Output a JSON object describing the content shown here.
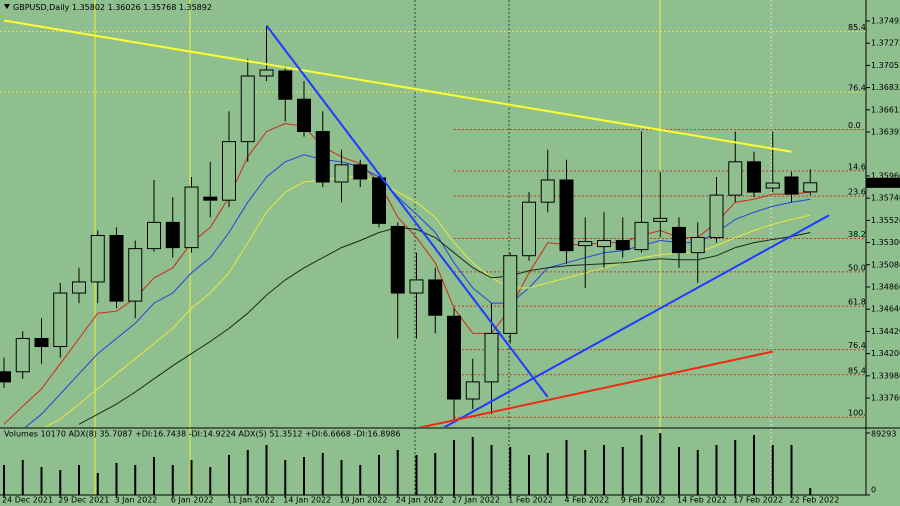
{
  "chart_data": {
    "type": "candlestick",
    "symbol": "GBPUSD,Daily",
    "volume_title": "Volumes 10170  ADX(8) 35.7087 +DI:16.7438 -DI:14.9224  ADX(5) 51.3512 +DI:6.6668 -DI:16.8986",
    "categories": [
      "24 Dec 2021",
      null,
      null,
      "29 Dec 2021",
      null,
      null,
      "3 Jan 2022",
      null,
      null,
      "6 Jan 2022",
      null,
      null,
      "11 Jan 2022",
      null,
      null,
      "14 Jan 2022",
      null,
      null,
      "19 Jan 2022",
      null,
      null,
      "24 Jan 2022",
      null,
      null,
      "27 Jan 2022",
      null,
      null,
      "1 Feb 2022",
      null,
      null,
      "4 Feb 2022",
      null,
      null,
      "9 Feb 2022",
      null,
      null,
      "14 Feb 2022",
      null,
      null,
      "17 Feb 2022",
      null,
      null,
      "22 Feb 2022",
      null
    ],
    "open": [
      1.3402,
      1.3402,
      1.3435,
      1.3427,
      1.348,
      1.3491,
      1.3537,
      1.3472,
      1.3524,
      1.355,
      1.3525,
      1.3575,
      1.3572,
      1.363,
      1.3695,
      1.37,
      1.3672,
      1.364,
      1.359,
      1.3607,
      1.3594,
      1.3546,
      1.348,
      1.3493,
      1.3457,
      1.3375,
      1.3392,
      1.344,
      1.3517,
      1.357,
      1.3592,
      1.3527,
      1.3526,
      1.3532,
      1.3523,
      1.3551,
      1.3545,
      1.352,
      1.3535,
      1.3577,
      1.361,
      1.3584,
      1.3595,
      1.35802
    ],
    "high": [
      1.3416,
      1.3442,
      1.3455,
      1.349,
      1.3505,
      1.3542,
      1.3545,
      1.3532,
      1.3592,
      1.3575,
      1.3595,
      1.361,
      1.366,
      1.3712,
      1.3745,
      1.3705,
      1.369,
      1.366,
      1.3622,
      1.3612,
      1.3596,
      1.355,
      1.352,
      1.3505,
      1.3465,
      1.3415,
      1.347,
      1.352,
      1.358,
      1.3622,
      1.3612,
      1.3555,
      1.356,
      1.3555,
      1.364,
      1.36,
      1.3555,
      1.355,
      1.3595,
      1.364,
      1.362,
      1.364,
      1.36,
      1.36026
    ],
    "low": [
      1.3386,
      1.3395,
      1.341,
      1.3416,
      1.347,
      1.347,
      1.3465,
      1.3455,
      1.3521,
      1.3515,
      1.352,
      1.3555,
      1.3565,
      1.361,
      1.369,
      1.365,
      1.3635,
      1.3585,
      1.357,
      1.3585,
      1.3545,
      1.3435,
      1.3435,
      1.344,
      1.3355,
      1.3365,
      1.336,
      1.343,
      1.3512,
      1.356,
      1.3509,
      1.3485,
      1.3505,
      1.3515,
      1.352,
      1.3535,
      1.3505,
      1.349,
      1.353,
      1.357,
      1.3575,
      1.358,
      1.357,
      1.35768
    ],
    "close": [
      1.3392,
      1.3435,
      1.3427,
      1.348,
      1.3491,
      1.3537,
      1.3472,
      1.3524,
      1.355,
      1.3525,
      1.3585,
      1.3572,
      1.363,
      1.3695,
      1.3701,
      1.3672,
      1.364,
      1.359,
      1.3607,
      1.3593,
      1.3549,
      1.348,
      1.3493,
      1.3458,
      1.3375,
      1.3392,
      1.344,
      1.3517,
      1.357,
      1.3592,
      1.3522,
      1.3531,
      1.3532,
      1.3523,
      1.355,
      1.3554,
      1.352,
      1.3535,
      1.3577,
      1.361,
      1.358,
      1.3589,
      1.3578,
      1.35892
    ],
    "volume": [
      43200,
      50400,
      40320,
      36000,
      43200,
      31680,
      46080,
      43200,
      54720,
      43200,
      50400,
      40320,
      57600,
      64800,
      72000,
      50400,
      54720,
      60480,
      50400,
      43200,
      57600,
      64800,
      57600,
      60480,
      79200,
      83520,
      72000,
      69120,
      57600,
      60480,
      79200,
      64800,
      72000,
      69120,
      86400,
      89280,
      69120,
      64800,
      72000,
      79200,
      86400,
      72000,
      72000,
      10170
    ],
    "series": [
      {
        "color": "#d02818",
        "values": [
          1.335,
          1.3368,
          1.3385,
          1.341,
          1.3435,
          1.346,
          1.3462,
          1.3475,
          1.3495,
          1.3505,
          1.353,
          1.3545,
          1.3575,
          1.3615,
          1.364,
          1.3648,
          1.3645,
          1.3625,
          1.3615,
          1.3608,
          1.359,
          1.3555,
          1.3535,
          1.351,
          1.3465,
          1.344,
          1.344,
          1.3465,
          1.35,
          1.353,
          1.3528,
          1.3528,
          1.353,
          1.353,
          1.3537,
          1.3542,
          1.3535,
          1.3535,
          1.355,
          1.357,
          1.3573,
          1.3578,
          1.3578,
          1.358
        ]
      },
      {
        "color": "#2244dd",
        "values": [
          1.3335,
          1.3345,
          1.336,
          1.338,
          1.34,
          1.342,
          1.3435,
          1.345,
          1.347,
          1.348,
          1.35,
          1.3515,
          1.354,
          1.357,
          1.3595,
          1.361,
          1.3617,
          1.3612,
          1.361,
          1.3605,
          1.3595,
          1.3575,
          1.3558,
          1.354,
          1.351,
          1.3485,
          1.347,
          1.347,
          1.3485,
          1.3505,
          1.351,
          1.3515,
          1.352,
          1.3522,
          1.3527,
          1.3532,
          1.353,
          1.353,
          1.354,
          1.3553,
          1.356,
          1.3566,
          1.357,
          1.3573
        ]
      },
      {
        "color": "#e8e840",
        "values": [
          null,
          null,
          1.3345,
          1.3355,
          1.337,
          1.3385,
          1.34,
          1.3415,
          1.343,
          1.3445,
          1.3465,
          1.348,
          1.35,
          1.353,
          1.356,
          1.358,
          1.359,
          1.3592,
          1.3595,
          1.3595,
          1.359,
          1.358,
          1.357,
          1.3555,
          1.353,
          1.351,
          1.3495,
          1.3485,
          1.3485,
          1.349,
          1.3495,
          1.35,
          1.3505,
          1.351,
          1.3515,
          1.3518,
          1.352,
          1.352,
          1.3527,
          1.3535,
          1.3542,
          1.3548,
          1.3553,
          1.3557
        ]
      },
      {
        "color": "#1a2a1a",
        "values": [
          null,
          null,
          null,
          null,
          1.335,
          1.336,
          1.337,
          1.3382,
          1.3395,
          1.3408,
          1.342,
          1.3432,
          1.3445,
          1.346,
          1.3478,
          1.3493,
          1.3505,
          1.3515,
          1.3525,
          1.3532,
          1.354,
          1.3545,
          1.3543,
          1.3535,
          1.352,
          1.3505,
          1.3495,
          1.3497,
          1.3502,
          1.3505,
          1.3507,
          1.3508,
          1.3509,
          1.351,
          1.3512,
          1.3514,
          1.3513,
          1.3513,
          1.3517,
          1.3525,
          1.353,
          1.3533,
          1.3536,
          1.354
        ]
      }
    ],
    "trendlines": [
      {
        "color": "#ffff30",
        "x": [
          0,
          42
        ],
        "y": [
          1.375,
          1.362
        ]
      },
      {
        "color": "#1e3cff",
        "x": [
          14,
          29
        ],
        "y": [
          1.3745,
          1.3377
        ]
      },
      {
        "color": "#1e3cff",
        "x": [
          23,
          44
        ],
        "y": [
          1.3342,
          1.3557
        ]
      },
      {
        "color": "#ee2a10",
        "x": [
          21,
          41
        ],
        "y": [
          1.3342,
          1.3422
        ]
      }
    ],
    "levels": [
      {
        "label": "85.4",
        "value": 1.3739,
        "color": "#e8e840"
      },
      {
        "label": "76.4",
        "value": 1.3679,
        "color": "#e8e840"
      },
      {
        "label": "0.0",
        "value": 1.3642,
        "color": "#c83c1e"
      },
      {
        "label": "14.6",
        "value": 1.3601,
        "color": "#c83c1e"
      },
      {
        "label": "23.6",
        "value": 1.3576,
        "color": "#c83c1e"
      },
      {
        "label": "38.2",
        "value": 1.3534,
        "color": "#c83c1e"
      },
      {
        "label": "50.0",
        "value": 1.3501,
        "color": "#c83c1e"
      },
      {
        "label": "61.8",
        "value": 1.3467,
        "color": "#c83c1e"
      },
      {
        "label": "76.4",
        "value": 1.3424,
        "color": "#c83c1e"
      },
      {
        "label": "85.4",
        "value": 1.3399,
        "color": "#c83c1e"
      },
      {
        "label": "100.0",
        "value": 1.3357,
        "color": "#c83c1e"
      }
    ],
    "ylim": [
      1.33463,
      1.37703
    ],
    "yticks": [
      {
        "value": 1.37495,
        "label": "1.37495"
      },
      {
        "value": 1.37275,
        "label": "1.37275"
      },
      {
        "value": 1.37055,
        "label": "1.37055"
      },
      {
        "value": 1.36835,
        "label": "1.36835"
      },
      {
        "value": 1.36615,
        "label": "1.36615"
      },
      {
        "value": 1.36395,
        "label": "1.36395"
      },
      {
        "value": 1.3596,
        "label": "1.35960"
      },
      {
        "value": 1.3574,
        "label": "1.35740"
      },
      {
        "value": 1.3552,
        "label": "1.35520"
      },
      {
        "value": 1.353,
        "label": "1.35300"
      },
      {
        "value": 1.3508,
        "label": "1.35080"
      },
      {
        "value": 1.3486,
        "label": "1.34860"
      },
      {
        "value": 1.3464,
        "label": "1.34640"
      },
      {
        "value": 1.3442,
        "label": "1.34420"
      },
      {
        "value": 1.342,
        "label": "1.34200"
      },
      {
        "value": 1.3398,
        "label": "1.33980"
      },
      {
        "value": 1.3376,
        "label": "1.33760"
      }
    ],
    "y2lim": [
      0,
      89293
    ],
    "y2ticks": [
      0,
      89293
    ],
    "bull_color": "#8fbf8f",
    "bear_color": "#000000",
    "background": "#8fbf8f"
  }
}
